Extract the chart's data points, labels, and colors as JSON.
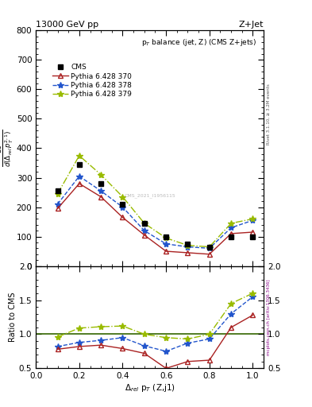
{
  "title_top": "13000 GeV pp",
  "title_right": "Z+Jet",
  "plot_title": "p$_{T}$ balance (jet, Z) (CMS Z+jets)",
  "xlabel": "$\\Delta_{rel}$ p$_{T}$ (Z,j1)",
  "ylabel_ratio": "Ratio to CMS",
  "right_label_main": "Rivet 3.1.10, ≥ 3.2M events",
  "right_label_ratio": "mcplots.cern.ch [arXiv:1306.3436]",
  "watermark": "CMS_2021_I1956115",
  "x_cms": [
    0.1,
    0.2,
    0.3,
    0.4,
    0.5,
    0.6,
    0.7,
    0.8,
    0.9,
    1.0
  ],
  "y_cms": [
    255,
    345,
    280,
    210,
    145,
    100,
    75,
    65,
    100,
    100
  ],
  "x_p370": [
    0.1,
    0.2,
    0.3,
    0.4,
    0.5,
    0.6,
    0.7,
    0.8,
    0.9,
    1.0
  ],
  "y_p370": [
    195,
    280,
    235,
    165,
    105,
    50,
    45,
    40,
    110,
    115
  ],
  "x_p378": [
    0.1,
    0.2,
    0.3,
    0.4,
    0.5,
    0.6,
    0.7,
    0.8,
    0.9,
    1.0
  ],
  "y_p378": [
    210,
    305,
    255,
    200,
    120,
    75,
    65,
    60,
    130,
    155
  ],
  "x_p379": [
    0.1,
    0.2,
    0.3,
    0.4,
    0.5,
    0.6,
    0.7,
    0.8,
    0.9,
    1.0
  ],
  "y_p379": [
    245,
    375,
    310,
    235,
    145,
    95,
    70,
    65,
    145,
    160
  ],
  "ratio_p370": [
    0.78,
    0.82,
    0.84,
    0.79,
    0.72,
    0.5,
    0.6,
    0.62,
    1.1,
    1.28
  ],
  "ratio_p378": [
    0.82,
    0.88,
    0.91,
    0.95,
    0.83,
    0.75,
    0.87,
    0.93,
    1.3,
    1.55
  ],
  "ratio_p379": [
    0.96,
    1.09,
    1.11,
    1.12,
    1.0,
    0.95,
    0.93,
    1.0,
    1.45,
    1.6
  ],
  "color_cms": "#000000",
  "color_p370": "#aa2222",
  "color_p378": "#2255cc",
  "color_p379": "#99bb00",
  "ylim_main": [
    0,
    800
  ],
  "ylim_ratio": [
    0.5,
    2.0
  ],
  "xlim": [
    0.0,
    1.05
  ],
  "yticks_main": [
    0,
    100,
    200,
    300,
    400,
    500,
    600,
    700,
    800
  ],
  "yticks_ratio": [
    0.5,
    1.0,
    1.5,
    2.0
  ],
  "bg_color": "#ffffff"
}
